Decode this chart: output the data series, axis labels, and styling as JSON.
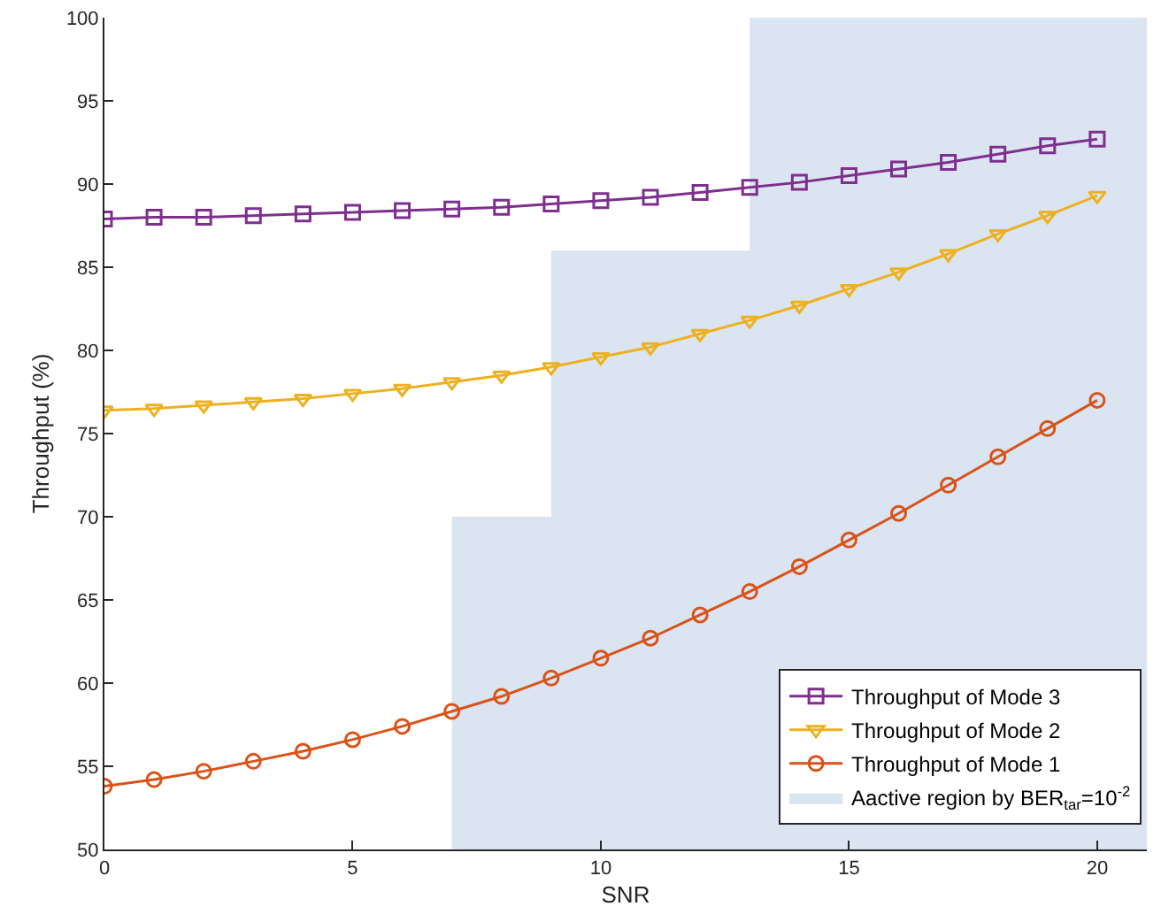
{
  "chart_data": {
    "type": "line",
    "xlabel": "SNR",
    "ylabel": "Throughput (%)",
    "x": [
      0,
      1,
      2,
      3,
      4,
      5,
      6,
      7,
      8,
      9,
      10,
      11,
      12,
      13,
      14,
      15,
      16,
      17,
      18,
      19,
      20
    ],
    "xlim": [
      0,
      21
    ],
    "xticks": [
      0,
      5,
      10,
      15,
      20
    ],
    "ylim": [
      50,
      100
    ],
    "yticks": [
      50,
      55,
      60,
      65,
      70,
      75,
      80,
      85,
      90,
      95,
      100
    ],
    "grid": false,
    "legend": "bottom right",
    "line_style": "solid",
    "series": [
      {
        "name": "Throughput of Mode 3",
        "color": "#7e2f8e",
        "marker": "square",
        "values": [
          87.9,
          88.0,
          88.0,
          88.1,
          88.2,
          88.3,
          88.4,
          88.5,
          88.6,
          88.8,
          89.0,
          89.2,
          89.5,
          89.8,
          90.1,
          90.5,
          90.9,
          91.3,
          91.8,
          92.3,
          92.7
        ]
      },
      {
        "name": "Throughput of Mode 2",
        "color": "#edb120",
        "marker": "triangle",
        "values": [
          76.4,
          76.5,
          76.7,
          76.9,
          77.1,
          77.4,
          77.7,
          78.1,
          78.5,
          79.0,
          79.6,
          80.2,
          81.0,
          81.8,
          82.7,
          83.7,
          84.7,
          85.8,
          87.0,
          88.1,
          89.3
        ]
      },
      {
        "name": "Throughput of Mode 1",
        "color": "#d95319",
        "marker": "circle",
        "values": [
          53.8,
          54.2,
          54.7,
          55.3,
          55.9,
          56.6,
          57.4,
          58.3,
          59.2,
          60.3,
          61.5,
          62.7,
          64.1,
          65.5,
          67.0,
          68.6,
          70.2,
          71.9,
          73.6,
          75.3,
          77.0
        ]
      },
      {
        "name": "Aactive region by BER$_{tar}$=10$^{-2}$",
        "color": "#dbe4f1",
        "type": "area",
        "x": [
          7,
          9,
          9,
          13,
          13,
          21
        ],
        "values": [
          70,
          70,
          86,
          86,
          100,
          100
        ]
      }
    ]
  }
}
